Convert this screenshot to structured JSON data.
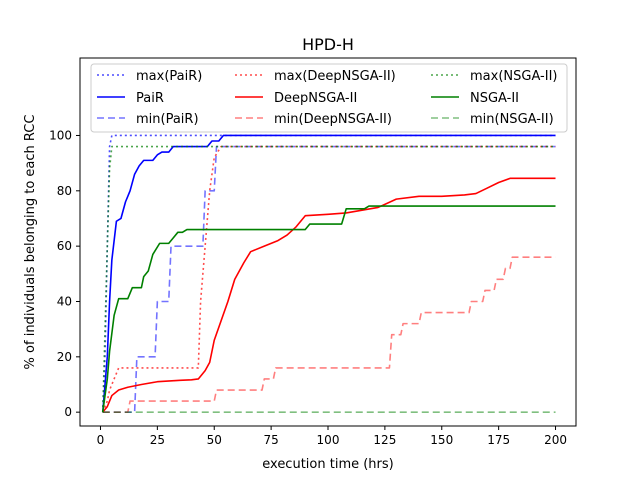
{
  "chart_data": {
    "type": "line",
    "title": "HPD-H",
    "xlabel": "execution time (hrs)",
    "ylabel": "% of individuals belonging to each RCC",
    "xlim": [
      -9,
      209
    ],
    "ylim": [
      -5,
      128
    ],
    "xticks": [
      0,
      25,
      50,
      75,
      100,
      125,
      150,
      175,
      200
    ],
    "yticks": [
      0,
      20,
      40,
      60,
      80,
      100
    ],
    "grid": false,
    "legend_placement": "top",
    "legend_columns": 3,
    "series": [
      {
        "name": "max(PaiR)",
        "color": "#0000ff",
        "dash": "dotted",
        "opacity": 0.7,
        "points": [
          [
            1,
            0
          ],
          [
            2,
            20
          ],
          [
            3,
            60
          ],
          [
            4,
            96
          ],
          [
            5,
            100
          ],
          [
            200,
            100
          ]
        ]
      },
      {
        "name": "PaiR",
        "color": "#0000ff",
        "dash": "solid",
        "opacity": 1,
        "points": [
          [
            1,
            0
          ],
          [
            3,
            20
          ],
          [
            4,
            40
          ],
          [
            5,
            55
          ],
          [
            7,
            69
          ],
          [
            9,
            70
          ],
          [
            11,
            76
          ],
          [
            13,
            80
          ],
          [
            15,
            86
          ],
          [
            17,
            89
          ],
          [
            19,
            91
          ],
          [
            23,
            91
          ],
          [
            25,
            93
          ],
          [
            27,
            94
          ],
          [
            30,
            94
          ],
          [
            32,
            96
          ],
          [
            40,
            96
          ],
          [
            47,
            96
          ],
          [
            49,
            98
          ],
          [
            52,
            98
          ],
          [
            54,
            100
          ],
          [
            200,
            100
          ]
        ]
      },
      {
        "name": "min(PaiR)",
        "color": "#0000ff",
        "dash": "dashed",
        "opacity": 0.55,
        "points": [
          [
            1,
            0
          ],
          [
            15,
            0
          ],
          [
            16,
            20
          ],
          [
            24,
            20
          ],
          [
            25,
            40
          ],
          [
            30,
            40
          ],
          [
            31,
            60
          ],
          [
            45,
            60
          ],
          [
            46,
            80
          ],
          [
            50,
            80
          ],
          [
            51,
            96
          ],
          [
            200,
            96
          ]
        ]
      },
      {
        "name": "max(DeepNSGA-II)",
        "color": "#ff0000",
        "dash": "dotted",
        "opacity": 0.7,
        "points": [
          [
            1,
            0
          ],
          [
            3,
            4
          ],
          [
            4,
            8
          ],
          [
            6,
            12
          ],
          [
            8,
            16
          ],
          [
            43,
            16
          ],
          [
            44,
            40
          ],
          [
            46,
            60
          ],
          [
            48,
            80
          ],
          [
            50,
            92
          ],
          [
            53,
            96
          ],
          [
            200,
            96
          ]
        ]
      },
      {
        "name": "DeepNSGA-II",
        "color": "#ff0000",
        "dash": "solid",
        "opacity": 1,
        "points": [
          [
            1,
            0
          ],
          [
            3,
            2
          ],
          [
            5,
            6
          ],
          [
            8,
            8
          ],
          [
            12,
            9
          ],
          [
            18,
            10
          ],
          [
            25,
            11
          ],
          [
            35,
            11.5
          ],
          [
            40,
            11.7
          ],
          [
            43,
            12
          ],
          [
            46,
            15
          ],
          [
            48,
            18
          ],
          [
            50,
            26
          ],
          [
            53,
            33
          ],
          [
            56,
            40
          ],
          [
            59,
            48
          ],
          [
            63,
            54
          ],
          [
            66,
            58
          ],
          [
            72,
            60
          ],
          [
            78,
            62
          ],
          [
            82,
            64
          ],
          [
            86,
            67
          ],
          [
            90,
            71
          ],
          [
            100,
            71.5
          ],
          [
            108,
            72
          ],
          [
            115,
            73
          ],
          [
            122,
            74
          ],
          [
            130,
            77
          ],
          [
            140,
            78
          ],
          [
            150,
            78
          ],
          [
            160,
            78.5
          ],
          [
            165,
            79
          ],
          [
            170,
            81
          ],
          [
            175,
            83
          ],
          [
            180,
            84.5
          ],
          [
            200,
            84.5
          ]
        ]
      },
      {
        "name": "min(DeepNSGA-II)",
        "color": "#ff0000",
        "dash": "dashed",
        "opacity": 0.5,
        "points": [
          [
            1,
            0
          ],
          [
            12,
            0
          ],
          [
            13,
            4
          ],
          [
            50,
            4
          ],
          [
            51,
            8
          ],
          [
            71,
            8
          ],
          [
            72,
            12
          ],
          [
            76,
            12
          ],
          [
            77,
            16
          ],
          [
            127,
            16
          ],
          [
            128,
            28
          ],
          [
            132,
            28
          ],
          [
            133,
            32
          ],
          [
            140,
            32
          ],
          [
            141,
            36
          ],
          [
            162,
            36
          ],
          [
            163,
            40
          ],
          [
            168,
            40
          ],
          [
            169,
            44
          ],
          [
            173,
            44
          ],
          [
            174,
            48
          ],
          [
            177,
            48
          ],
          [
            178,
            52
          ],
          [
            180,
            52
          ],
          [
            181,
            56
          ],
          [
            200,
            56
          ]
        ]
      },
      {
        "name": "max(NSGA-II)",
        "color": "#008000",
        "dash": "dotted",
        "opacity": 0.7,
        "points": [
          [
            1,
            0
          ],
          [
            2,
            30
          ],
          [
            3,
            60
          ],
          [
            4,
            88
          ],
          [
            5,
            96
          ],
          [
            200,
            96
          ]
        ]
      },
      {
        "name": "NSGA-II",
        "color": "#008000",
        "dash": "solid",
        "opacity": 1,
        "points": [
          [
            1,
            0
          ],
          [
            3,
            12
          ],
          [
            4,
            22
          ],
          [
            6,
            35
          ],
          [
            8,
            41
          ],
          [
            12,
            41
          ],
          [
            14,
            45
          ],
          [
            18,
            45
          ],
          [
            19,
            49
          ],
          [
            21,
            51
          ],
          [
            23,
            57
          ],
          [
            26,
            61
          ],
          [
            30,
            61
          ],
          [
            32,
            63
          ],
          [
            34,
            65
          ],
          [
            36,
            65
          ],
          [
            38,
            66
          ],
          [
            90,
            66
          ],
          [
            92,
            68
          ],
          [
            106,
            68
          ],
          [
            108,
            73.5
          ],
          [
            116,
            73.5
          ],
          [
            118,
            74.5
          ],
          [
            200,
            74.5
          ]
        ]
      },
      {
        "name": "min(NSGA-II)",
        "color": "#008000",
        "dash": "dashed",
        "opacity": 0.5,
        "points": [
          [
            1,
            0
          ],
          [
            200,
            0
          ]
        ]
      }
    ]
  }
}
